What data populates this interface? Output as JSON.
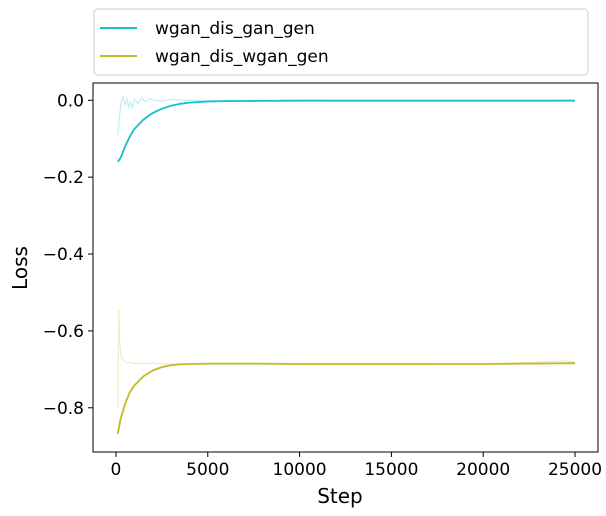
{
  "chart_data": {
    "type": "line",
    "title": "",
    "xlabel": "Step",
    "ylabel": "Loss",
    "xlim": [
      -1250,
      26250
    ],
    "ylim": [
      -0.915,
      0.045
    ],
    "x_ticks": [
      0,
      5000,
      10000,
      15000,
      20000,
      25000
    ],
    "x_tick_labels": [
      "0",
      "5000",
      "10000",
      "15000",
      "20000",
      "25000"
    ],
    "y_ticks": [
      0.0,
      -0.2,
      -0.4,
      -0.6,
      -0.8
    ],
    "y_tick_labels": [
      "0.0",
      "−0.2",
      "−0.4",
      "−0.6",
      "−0.8"
    ],
    "grid": false,
    "legend_position": "top, above plot",
    "series": [
      {
        "name": "wgan_dis_gan_gen",
        "color": "#17becf",
        "smoothed": {
          "x": [
            100,
            250,
            500,
            750,
            1000,
            1500,
            2000,
            2500,
            3000,
            3500,
            4000,
            5000,
            6000,
            8000,
            10000,
            12500,
            15000,
            17500,
            20000,
            22500,
            25000
          ],
          "y": [
            -0.16,
            -0.15,
            -0.12,
            -0.095,
            -0.075,
            -0.05,
            -0.033,
            -0.022,
            -0.014,
            -0.009,
            -0.006,
            -0.003,
            -0.002,
            -0.0015,
            -0.001,
            -0.001,
            -0.001,
            -0.001,
            -0.001,
            -0.001,
            -0.001
          ]
        },
        "raw": {
          "x": [
            100,
            200,
            300,
            400,
            500,
            600,
            700,
            800,
            900,
            1000,
            1200,
            1400,
            1600,
            1800,
            2000,
            2500,
            3000,
            4000,
            5000,
            7500,
            10000,
            15000,
            20000,
            25000
          ],
          "y": [
            -0.09,
            -0.04,
            0.0,
            0.008,
            -0.012,
            0.004,
            -0.018,
            -0.005,
            -0.022,
            0.003,
            -0.008,
            0.006,
            -0.004,
            0.004,
            0.001,
            -0.002,
            0.002,
            0.0,
            -0.001,
            -0.001,
            0.0,
            -0.001,
            -0.001,
            0.0
          ]
        }
      },
      {
        "name": "wgan_dis_wgan_gen",
        "color": "#bcbd22",
        "smoothed": {
          "x": [
            100,
            250,
            500,
            750,
            1000,
            1500,
            2000,
            2500,
            3000,
            3500,
            4000,
            5000,
            6000,
            8000,
            10000,
            12500,
            15000,
            17500,
            20000,
            22500,
            25000
          ],
          "y": [
            -0.868,
            -0.83,
            -0.79,
            -0.76,
            -0.742,
            -0.718,
            -0.703,
            -0.694,
            -0.689,
            -0.687,
            -0.686,
            -0.685,
            -0.685,
            -0.685,
            -0.686,
            -0.686,
            -0.686,
            -0.686,
            -0.686,
            -0.685,
            -0.684
          ]
        },
        "raw": {
          "x": [
            100,
            150,
            200,
            300,
            400,
            500,
            700,
            1000,
            1500,
            2000,
            3000,
            4000,
            5000,
            7500,
            10000,
            15000,
            20000,
            22500,
            24500,
            25000
          ],
          "y": [
            -0.8,
            -0.545,
            -0.63,
            -0.67,
            -0.675,
            -0.68,
            -0.682,
            -0.684,
            -0.685,
            -0.684,
            -0.686,
            -0.686,
            -0.686,
            -0.686,
            -0.687,
            -0.687,
            -0.686,
            -0.682,
            -0.678,
            -0.682
          ]
        }
      }
    ]
  }
}
